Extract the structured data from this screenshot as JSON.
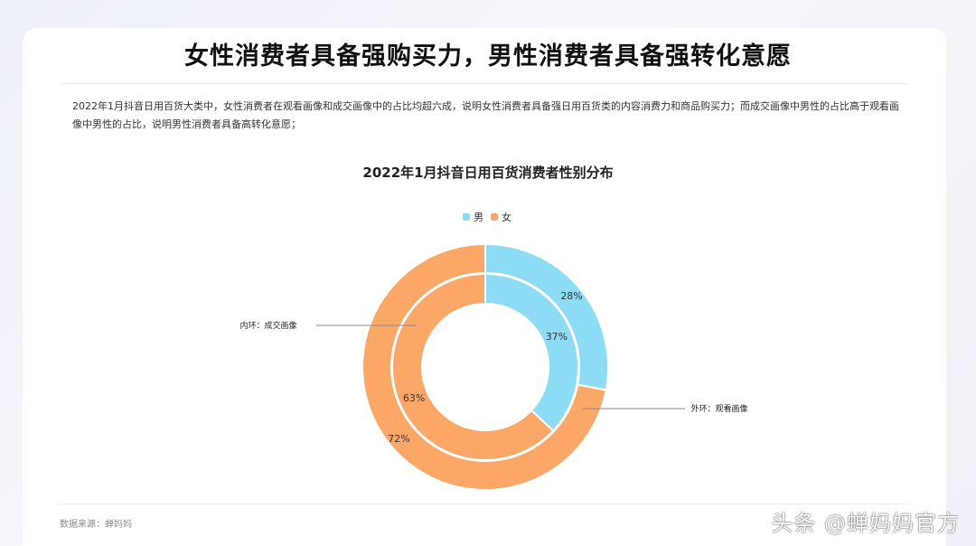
{
  "page": {
    "headline": "女性消费者具备强购买力，男性消费者具备强转化意愿",
    "description": "2022年1月抖音日用百货大类中，女性消费者在观看画像和成交画像中的占比均超六成，说明女性消费者具备强日用百货类的内容消费力和商品购买力；而成交画像中男性的占比高于观看画像中男性的占比，说明男性消费者具备高转化意愿；",
    "source": "数据来源：蝉妈妈",
    "watermark": "头条 @蝉妈妈官方"
  },
  "legend": {
    "male": "男",
    "female": "女"
  },
  "colors": {
    "male": "#8ddcf5",
    "female": "#fda766"
  },
  "chart_data": {
    "type": "pie",
    "title": "2022年1月抖音日用百货消费者性别分布",
    "categories": [
      "男",
      "女"
    ],
    "series": [
      {
        "name": "外环：观看画像",
        "values": [
          28,
          72
        ],
        "labels": [
          "28%",
          "72%"
        ]
      },
      {
        "name": "内环：成交画像",
        "values": [
          37,
          63
        ],
        "labels": [
          "37%",
          "63%"
        ]
      }
    ],
    "legend_position": "top-center"
  }
}
